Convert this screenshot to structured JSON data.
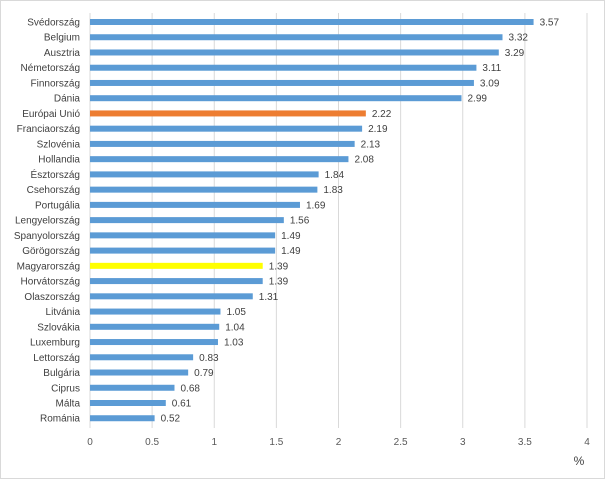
{
  "chart_data": {
    "type": "bar",
    "orientation": "horizontal",
    "categories": [
      "Svédország",
      "Belgium",
      "Ausztria",
      "Németország",
      "Finnország",
      "Dánia",
      "Európai Unió",
      "Franciaország",
      "Szlovénia",
      "Hollandia",
      "Észtország",
      "Csehország",
      "Portugália",
      "Lengyelország",
      "Spanyolország",
      "Görögország",
      "Magyarország",
      "Horvátország",
      "Olaszország",
      "Litvánia",
      "Szlovákia",
      "Luxemburg",
      "Lettország",
      "Bulgária",
      "Ciprus",
      "Málta",
      "Románia"
    ],
    "values": [
      3.57,
      3.32,
      3.29,
      3.11,
      3.09,
      2.99,
      2.22,
      2.19,
      2.13,
      2.08,
      1.84,
      1.83,
      1.69,
      1.56,
      1.49,
      1.49,
      1.39,
      1.39,
      1.31,
      1.05,
      1.04,
      1.03,
      0.83,
      0.79,
      0.68,
      0.61,
      0.52
    ],
    "value_labels": [
      "3.57",
      "3.32",
      "3.29",
      "3.11",
      "3.09",
      "2.99",
      "2.22",
      "2.19",
      "2.13",
      "2.08",
      "1.84",
      "1.83",
      "1.69",
      "1.56",
      "1.49",
      "1.49",
      "1.39",
      "1.39",
      "1.31",
      "1.05",
      "1.04",
      "1.03",
      "0.83",
      "0.79",
      "0.68",
      "0.61",
      "0.52"
    ],
    "xlim": [
      0,
      4
    ],
    "xticks": [
      "0",
      "0.5",
      "1",
      "1.5",
      "2",
      "2.5",
      "3",
      "3.5",
      "4"
    ],
    "xlabel": "%",
    "title": "",
    "grid": "vertical",
    "legend": "none",
    "colors": {
      "default": "#5b9bd5",
      "highlight_eu": "#ed7d31",
      "highlight_hu": "#ffff00"
    },
    "highlights": {
      "Európai Unió": "#ed7d31",
      "Magyarország": "#ffff00"
    }
  }
}
